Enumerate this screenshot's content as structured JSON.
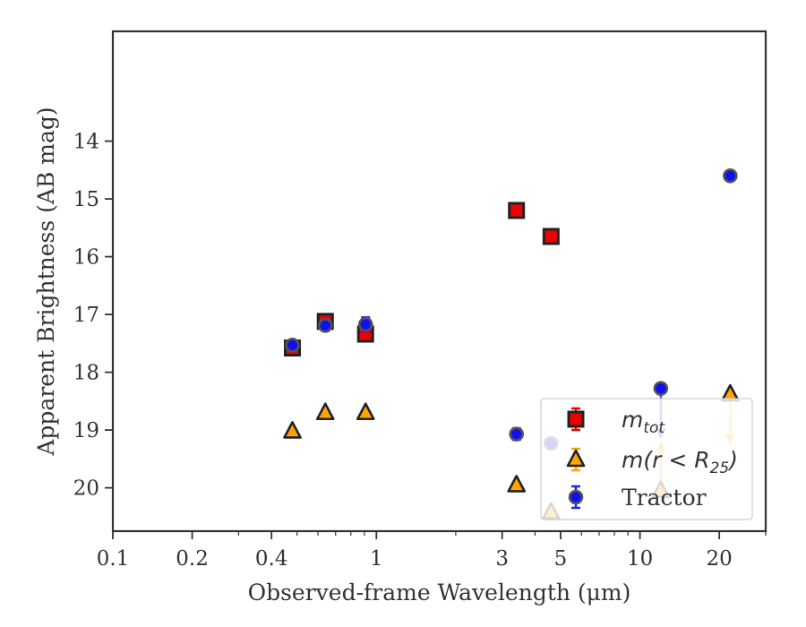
{
  "chart_data": {
    "type": "scatter",
    "title": "",
    "xlabel": "Observed-frame Wavelength (μm)",
    "ylabel": "Apparent Brightness (AB mag)",
    "x_scale": "log",
    "xlim": [
      0.1,
      30
    ],
    "ylim": [
      20.75,
      12.1
    ],
    "y_inverted": true,
    "grid": false,
    "legend_position": "lower right",
    "x_ticks": [
      {
        "value": 0.1,
        "label": "0.1"
      },
      {
        "value": 0.2,
        "label": "0.2"
      },
      {
        "value": 0.4,
        "label": "0.4"
      },
      {
        "value": 1,
        "label": "1"
      },
      {
        "value": 3,
        "label": "3"
      },
      {
        "value": 5,
        "label": "5"
      },
      {
        "value": 10,
        "label": "10"
      },
      {
        "value": 20,
        "label": "20"
      }
    ],
    "y_ticks": [
      {
        "value": 14,
        "label": "14"
      },
      {
        "value": 15,
        "label": "15"
      },
      {
        "value": 16,
        "label": "16"
      },
      {
        "value": 17,
        "label": "17"
      },
      {
        "value": 18,
        "label": "18"
      },
      {
        "value": 19,
        "label": "19"
      },
      {
        "value": 20,
        "label": "20"
      }
    ],
    "series": [
      {
        "name": "m_tot",
        "legend_main": "m",
        "legend_sub": "tot",
        "marker": "square",
        "fill": "#ee0000",
        "edge": "#222222",
        "errcolor": "#ee0000",
        "points": [
          {
            "x": 0.48,
            "y": 17.58,
            "err": 0.04
          },
          {
            "x": 0.64,
            "y": 17.12,
            "err": 0.04
          },
          {
            "x": 0.91,
            "y": 17.34,
            "err": 0.04
          },
          {
            "x": 3.4,
            "y": 15.2,
            "err": 0.03
          },
          {
            "x": 4.6,
            "y": 15.65,
            "err": 0.03
          }
        ]
      },
      {
        "name": "m(r < R_25)",
        "legend_main": "m(r < R",
        "legend_sub": "25",
        "legend_tail": ")",
        "marker": "triangle",
        "fill": "#ffa500",
        "edge": "#222222",
        "errcolor": "#ffa500",
        "points": [
          {
            "x": 0.48,
            "y": 19.02,
            "err": 0.03
          },
          {
            "x": 0.64,
            "y": 18.7,
            "err": 0.03
          },
          {
            "x": 0.91,
            "y": 18.7,
            "err": 0.03
          },
          {
            "x": 3.4,
            "y": 19.95,
            "err": 0.03
          },
          {
            "x": 4.6,
            "y": 20.42,
            "err": 0.05
          },
          {
            "x": 12.0,
            "y": 20.05,
            "lower_limit": true
          },
          {
            "x": 22.0,
            "y": 18.38,
            "upper_limit": true
          }
        ]
      },
      {
        "name": "Tractor",
        "legend_main": "Tractor",
        "marker": "circle",
        "fill": "#1010ee",
        "edge": "#555555",
        "errcolor": "#2222ee",
        "points": [
          {
            "x": 0.48,
            "y": 17.53,
            "err": 0.08
          },
          {
            "x": 0.64,
            "y": 17.19,
            "err": 0.08
          },
          {
            "x": 0.91,
            "y": 17.17,
            "err": 0.12
          },
          {
            "x": 3.4,
            "y": 19.07,
            "err": 0.1
          },
          {
            "x": 4.6,
            "y": 19.23,
            "err": 0.08
          },
          {
            "x": 12.0,
            "y": 18.28,
            "upper_limit": true
          },
          {
            "x": 22.0,
            "y": 14.6,
            "err": 0.08
          }
        ]
      }
    ]
  }
}
